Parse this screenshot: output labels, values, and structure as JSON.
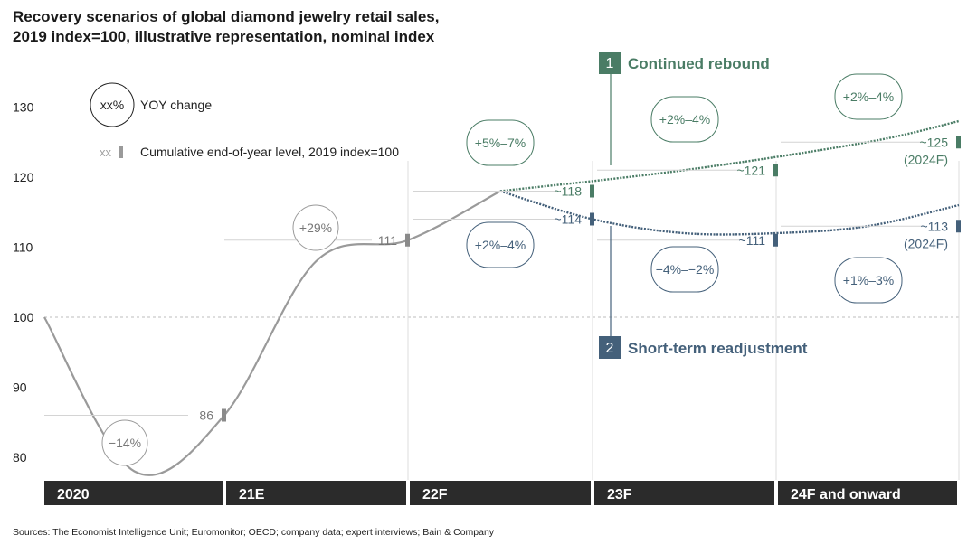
{
  "title_line1": "Recovery scenarios of global diamond jewelry retail sales,",
  "title_line2": "2019 index=100, illustrative representation, nominal index",
  "source": "Sources: The Economist Intelligence Unit; Euromonitor; OECD; company data; expert interviews; Bain & Company",
  "legend": {
    "yoy_symbol": "xx%",
    "yoy_label": "YOY change",
    "level_symbol": "xx",
    "level_label": "Cumulative end-of-year level, 2019 index=100"
  },
  "colors": {
    "actual": "#9a9a9a",
    "rebound": "#4a7c65",
    "readjustment": "#44607a",
    "period_bar": "#2b2b2b"
  },
  "chart_data": {
    "type": "line",
    "title": "Recovery scenarios of global diamond jewelry retail sales, 2019 index=100, illustrative representation, nominal index",
    "y_ticks": [
      80,
      90,
      100,
      110,
      120,
      130
    ],
    "ylim": [
      77,
      133
    ],
    "reference_line": 100,
    "periods": [
      "2020",
      "21E",
      "22F",
      "23F",
      "24F and onward"
    ],
    "series": [
      {
        "name": "",
        "style": "solid",
        "points": [
          [
            0,
            100
          ],
          [
            0.5,
            78
          ],
          [
            1,
            86
          ],
          [
            1.5,
            108
          ],
          [
            2,
            111
          ],
          [
            2.5,
            118
          ]
        ],
        "end_labels": [
          {
            "period": "2020",
            "value": 86,
            "text": "86"
          },
          {
            "period": "21E",
            "value": 111,
            "text": "111"
          }
        ],
        "yoy_changes": [
          {
            "period": "2020",
            "text": "−14%"
          },
          {
            "period": "21E",
            "text": "+29%"
          }
        ]
      },
      {
        "name": "Continued rebound",
        "number": "1",
        "style": "dotted",
        "points": [
          [
            2.5,
            118
          ],
          [
            3.5,
            121
          ],
          [
            4.5,
            125
          ],
          [
            5,
            128
          ]
        ],
        "end_labels": [
          {
            "period": "22F",
            "value": 118,
            "text": "~118"
          },
          {
            "period": "23F",
            "value": 121,
            "text": "~121"
          },
          {
            "period": "24F and onward",
            "value": 125,
            "text": "~125",
            "sub": "(2024F)"
          }
        ],
        "yoy_changes": [
          {
            "period": "22F",
            "text": "+5%–7%"
          },
          {
            "period": "23F",
            "text": "+2%–4%"
          },
          {
            "period": "24F and onward",
            "text": "+2%–4%"
          }
        ]
      },
      {
        "name": "Short-term readjustment",
        "number": "2",
        "style": "dotted",
        "points": [
          [
            2.5,
            118
          ],
          [
            3,
            114
          ],
          [
            3.5,
            112
          ],
          [
            4,
            112
          ],
          [
            4.5,
            113
          ],
          [
            5,
            116
          ]
        ],
        "end_labels": [
          {
            "period": "22F",
            "value": 114,
            "text": "~114"
          },
          {
            "period": "23F",
            "value": 111,
            "text": "~111"
          },
          {
            "period": "24F and onward",
            "value": 113,
            "text": "~113",
            "sub": "(2024F)"
          }
        ],
        "yoy_changes": [
          {
            "period": "22F",
            "text": "+2%–4%"
          },
          {
            "period": "23F",
            "text": "−4%–−2%"
          },
          {
            "period": "24F and onward",
            "text": "+1%–3%"
          }
        ]
      }
    ]
  }
}
